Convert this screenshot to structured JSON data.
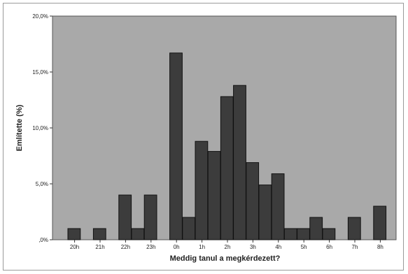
{
  "chart_data": {
    "type": "bar",
    "title": "",
    "xlabel": "Meddig tanul a megkérdezett?",
    "ylabel": "Említette (%)",
    "ylim": [
      0,
      20
    ],
    "yticks": [
      0,
      5,
      10,
      15,
      20
    ],
    "ytick_labels": [
      ",0%",
      "5,0%",
      "10,0%",
      "15,0%",
      "20,0%"
    ],
    "xtick_labels": [
      "20h",
      "21h",
      "22h",
      "23h",
      "0h",
      "1h",
      "2h",
      "3h",
      "4h",
      "5h",
      "6h",
      "7h",
      "8h"
    ],
    "values": [
      1.0,
      0.0,
      1.0,
      0.0,
      4.0,
      1.0,
      4.0,
      0.0,
      16.7,
      2.0,
      8.8,
      7.9,
      12.8,
      13.8,
      6.9,
      4.9,
      5.9,
      1.0,
      1.0,
      2.0,
      1.0,
      0.0,
      2.0,
      0.0,
      3.0
    ],
    "grid": false,
    "colors": {
      "plot_background": "#a9a9a9",
      "bar_fill": "#3c3c3c",
      "bar_edge": "#111111"
    }
  }
}
